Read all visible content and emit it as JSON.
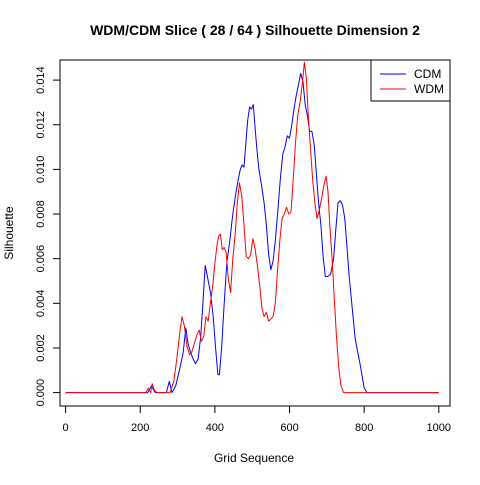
{
  "chart_data": {
    "type": "line",
    "title": "WDM/CDM Slice ( 28 / 64 )  Silhouette Dimension 2",
    "xlabel": "Grid Sequence",
    "ylabel": "Silhouette",
    "xlim": [
      -15,
      1030
    ],
    "ylim": [
      -0.0006,
      0.0149
    ],
    "x_ticks": [
      0,
      200,
      400,
      600,
      800,
      1000
    ],
    "x_tick_labels": [
      "0",
      "200",
      "400",
      "600",
      "800",
      "1000"
    ],
    "y_ticks": [
      0,
      0.002,
      0.004,
      0.006,
      0.008,
      0.01,
      0.012,
      0.014
    ],
    "y_tick_labels": [
      "0.000",
      "0.002",
      "0.004",
      "0.006",
      "0.008",
      "0.010",
      "0.012",
      "0.014"
    ],
    "grid": false,
    "legend_position": "top-right",
    "series": [
      {
        "name": "CDM",
        "color": "#0000ff",
        "points": [
          [
            0,
            0
          ],
          [
            200,
            0
          ],
          [
            220,
            0
          ],
          [
            230,
            0.0003
          ],
          [
            240,
            0
          ],
          [
            270,
            0
          ],
          [
            278,
            0.0005
          ],
          [
            285,
            0
          ],
          [
            295,
            0.0003
          ],
          [
            305,
            0.001
          ],
          [
            315,
            0.0018
          ],
          [
            322,
            0.0029
          ],
          [
            328,
            0.0022
          ],
          [
            335,
            0.0018
          ],
          [
            342,
            0.0015
          ],
          [
            348,
            0.0013
          ],
          [
            355,
            0.0015
          ],
          [
            362,
            0.0025
          ],
          [
            368,
            0.004
          ],
          [
            374,
            0.0057
          ],
          [
            380,
            0.0052
          ],
          [
            388,
            0.0045
          ],
          [
            395,
            0.0035
          ],
          [
            402,
            0.002
          ],
          [
            408,
            0.0008
          ],
          [
            412,
            0.0008
          ],
          [
            418,
            0.002
          ],
          [
            425,
            0.004
          ],
          [
            432,
            0.0058
          ],
          [
            440,
            0.0068
          ],
          [
            448,
            0.008
          ],
          [
            455,
            0.0088
          ],
          [
            462,
            0.0095
          ],
          [
            468,
            0.01
          ],
          [
            473,
            0.0102
          ],
          [
            478,
            0.0101
          ],
          [
            483,
            0.0112
          ],
          [
            488,
            0.0122
          ],
          [
            493,
            0.0128
          ],
          [
            498,
            0.0127
          ],
          [
            503,
            0.0129
          ],
          [
            508,
            0.0118
          ],
          [
            513,
            0.0108
          ],
          [
            518,
            0.01
          ],
          [
            525,
            0.0093
          ],
          [
            532,
            0.0085
          ],
          [
            538,
            0.0075
          ],
          [
            544,
            0.0062
          ],
          [
            550,
            0.0055
          ],
          [
            556,
            0.0059
          ],
          [
            562,
            0.0068
          ],
          [
            568,
            0.008
          ],
          [
            575,
            0.0095
          ],
          [
            582,
            0.0107
          ],
          [
            588,
            0.011
          ],
          [
            594,
            0.0115
          ],
          [
            600,
            0.0114
          ],
          [
            606,
            0.012
          ],
          [
            612,
            0.0127
          ],
          [
            618,
            0.0133
          ],
          [
            624,
            0.0138
          ],
          [
            630,
            0.0143
          ],
          [
            636,
            0.0139
          ],
          [
            642,
            0.0129
          ],
          [
            648,
            0.0124
          ],
          [
            654,
            0.0117
          ],
          [
            660,
            0.0117
          ],
          [
            666,
            0.0111
          ],
          [
            672,
            0.0098
          ],
          [
            678,
            0.0085
          ],
          [
            684,
            0.0075
          ],
          [
            690,
            0.0061
          ],
          [
            696,
            0.0052
          ],
          [
            702,
            0.0052
          ],
          [
            710,
            0.0053
          ],
          [
            718,
            0.006
          ],
          [
            724,
            0.0073
          ],
          [
            730,
            0.0085
          ],
          [
            736,
            0.0086
          ],
          [
            742,
            0.0084
          ],
          [
            748,
            0.0078
          ],
          [
            754,
            0.0065
          ],
          [
            760,
            0.0052
          ],
          [
            768,
            0.0038
          ],
          [
            776,
            0.0024
          ],
          [
            790,
            0.0012
          ],
          [
            800,
            0.0002
          ],
          [
            808,
            0
          ],
          [
            820,
            0
          ],
          [
            1000,
            0
          ]
        ]
      },
      {
        "name": "WDM",
        "color": "#ff0000",
        "points": [
          [
            0,
            0
          ],
          [
            200,
            0
          ],
          [
            215,
            0
          ],
          [
            222,
            0.0002
          ],
          [
            228,
            0
          ],
          [
            232,
            0.0004
          ],
          [
            238,
            0.0001
          ],
          [
            245,
            0
          ],
          [
            280,
            0
          ],
          [
            290,
            0.0005
          ],
          [
            298,
            0.0015
          ],
          [
            306,
            0.0027
          ],
          [
            312,
            0.0034
          ],
          [
            318,
            0.003
          ],
          [
            325,
            0.0021
          ],
          [
            332,
            0.0017
          ],
          [
            338,
            0.0018
          ],
          [
            345,
            0.0022
          ],
          [
            352,
            0.0026
          ],
          [
            358,
            0.0028
          ],
          [
            364,
            0.0023
          ],
          [
            370,
            0.0025
          ],
          [
            376,
            0.0034
          ],
          [
            382,
            0.0032
          ],
          [
            388,
            0.004
          ],
          [
            395,
            0.0049
          ],
          [
            400,
            0.0058
          ],
          [
            405,
            0.0065
          ],
          [
            410,
            0.007
          ],
          [
            415,
            0.0071
          ],
          [
            420,
            0.0064
          ],
          [
            425,
            0.0065
          ],
          [
            430,
            0.0063
          ],
          [
            436,
            0.0051
          ],
          [
            442,
            0.0045
          ],
          [
            448,
            0.006
          ],
          [
            454,
            0.007
          ],
          [
            460,
            0.0085
          ],
          [
            466,
            0.0094
          ],
          [
            472,
            0.0088
          ],
          [
            478,
            0.0075
          ],
          [
            484,
            0.0061
          ],
          [
            490,
            0.006
          ],
          [
            496,
            0.0062
          ],
          [
            502,
            0.0069
          ],
          [
            508,
            0.0064
          ],
          [
            514,
            0.0057
          ],
          [
            520,
            0.0048
          ],
          [
            526,
            0.0038
          ],
          [
            532,
            0.0034
          ],
          [
            538,
            0.0036
          ],
          [
            544,
            0.0032
          ],
          [
            550,
            0.0033
          ],
          [
            556,
            0.0034
          ],
          [
            562,
            0.004
          ],
          [
            568,
            0.0055
          ],
          [
            574,
            0.0068
          ],
          [
            580,
            0.0078
          ],
          [
            586,
            0.008
          ],
          [
            592,
            0.0083
          ],
          [
            598,
            0.008
          ],
          [
            604,
            0.0081
          ],
          [
            610,
            0.0096
          ],
          [
            616,
            0.0112
          ],
          [
            622,
            0.0124
          ],
          [
            628,
            0.013
          ],
          [
            634,
            0.0138
          ],
          [
            640,
            0.0148
          ],
          [
            645,
            0.0141
          ],
          [
            650,
            0.0125
          ],
          [
            656,
            0.011
          ],
          [
            662,
            0.0095
          ],
          [
            668,
            0.0085
          ],
          [
            674,
            0.0078
          ],
          [
            680,
            0.0082
          ],
          [
            686,
            0.0087
          ],
          [
            692,
            0.0093
          ],
          [
            698,
            0.0097
          ],
          [
            703,
            0.009
          ],
          [
            708,
            0.0075
          ],
          [
            714,
            0.006
          ],
          [
            720,
            0.0042
          ],
          [
            726,
            0.0025
          ],
          [
            732,
            0.0011
          ],
          [
            738,
            0.0003
          ],
          [
            745,
            0
          ],
          [
            760,
            0
          ],
          [
            1000,
            0
          ]
        ]
      }
    ]
  }
}
